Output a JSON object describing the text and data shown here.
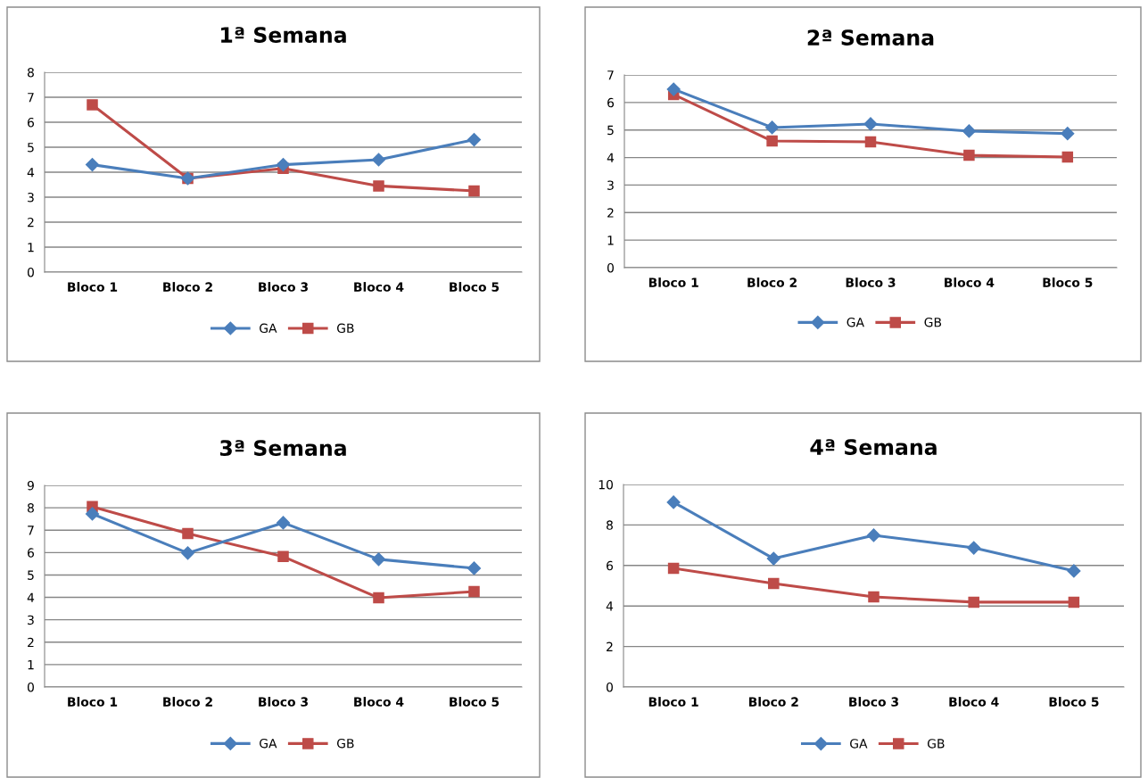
{
  "chart_data": [
    {
      "type": "line",
      "title": "1ª Semana",
      "categories": [
        "Bloco 1",
        "Bloco 2",
        "Bloco 3",
        "Bloco 4",
        "Bloco 5"
      ],
      "ylim": [
        0,
        8
      ],
      "yticks": [
        0,
        1,
        2,
        3,
        4,
        5,
        6,
        7,
        8
      ],
      "grid": "y",
      "legend": "bottom",
      "series": [
        {
          "name": "GA",
          "color": "#4a7ebb",
          "marker": "diamond",
          "values": [
            4.3,
            3.75,
            4.3,
            4.5,
            5.3
          ]
        },
        {
          "name": "GB",
          "color": "#be4b48",
          "marker": "square",
          "values": [
            6.7,
            3.75,
            4.15,
            3.45,
            3.25
          ]
        }
      ]
    },
    {
      "type": "line",
      "title": "2ª Semana",
      "categories": [
        "Bloco 1",
        "Bloco 2",
        "Bloco 3",
        "Bloco 4",
        "Bloco 5"
      ],
      "ylim": [
        0,
        7
      ],
      "yticks": [
        0,
        1,
        2,
        3,
        4,
        5,
        6,
        7
      ],
      "grid": "y",
      "legend": "bottom",
      "series": [
        {
          "name": "GA",
          "color": "#4a7ebb",
          "marker": "diamond",
          "values": [
            6.48,
            5.09,
            5.22,
            4.96,
            4.87
          ]
        },
        {
          "name": "GB",
          "color": "#be4b48",
          "marker": "square",
          "values": [
            6.29,
            4.6,
            4.57,
            4.08,
            4.02
          ]
        }
      ]
    },
    {
      "type": "line",
      "title": "3ª Semana",
      "categories": [
        "Bloco 1",
        "Bloco 2",
        "Bloco 3",
        "Bloco 4",
        "Bloco 5"
      ],
      "ylim": [
        0,
        9
      ],
      "yticks": [
        0,
        1,
        2,
        3,
        4,
        5,
        6,
        7,
        8,
        9
      ],
      "grid": "y",
      "legend": "bottom",
      "series": [
        {
          "name": "GA",
          "color": "#4a7ebb",
          "marker": "diamond",
          "values": [
            7.73,
            5.98,
            7.33,
            5.7,
            5.3
          ]
        },
        {
          "name": "GB",
          "color": "#be4b48",
          "marker": "square",
          "values": [
            8.05,
            6.85,
            5.82,
            3.98,
            4.26
          ]
        }
      ]
    },
    {
      "type": "line",
      "title": "4ª Semana",
      "categories": [
        "Bloco 1",
        "Bloco 2",
        "Bloco 3",
        "Bloco 4",
        "Bloco 5"
      ],
      "ylim": [
        0,
        10
      ],
      "yticks": [
        0,
        2,
        4,
        6,
        8,
        10
      ],
      "grid": "y",
      "legend": "bottom",
      "series": [
        {
          "name": "GA",
          "color": "#4a7ebb",
          "marker": "diamond",
          "values": [
            9.12,
            6.34,
            7.49,
            6.87,
            5.73
          ]
        },
        {
          "name": "GB",
          "color": "#be4b48",
          "marker": "square",
          "values": [
            5.86,
            5.11,
            4.45,
            4.19,
            4.19
          ]
        }
      ]
    }
  ]
}
